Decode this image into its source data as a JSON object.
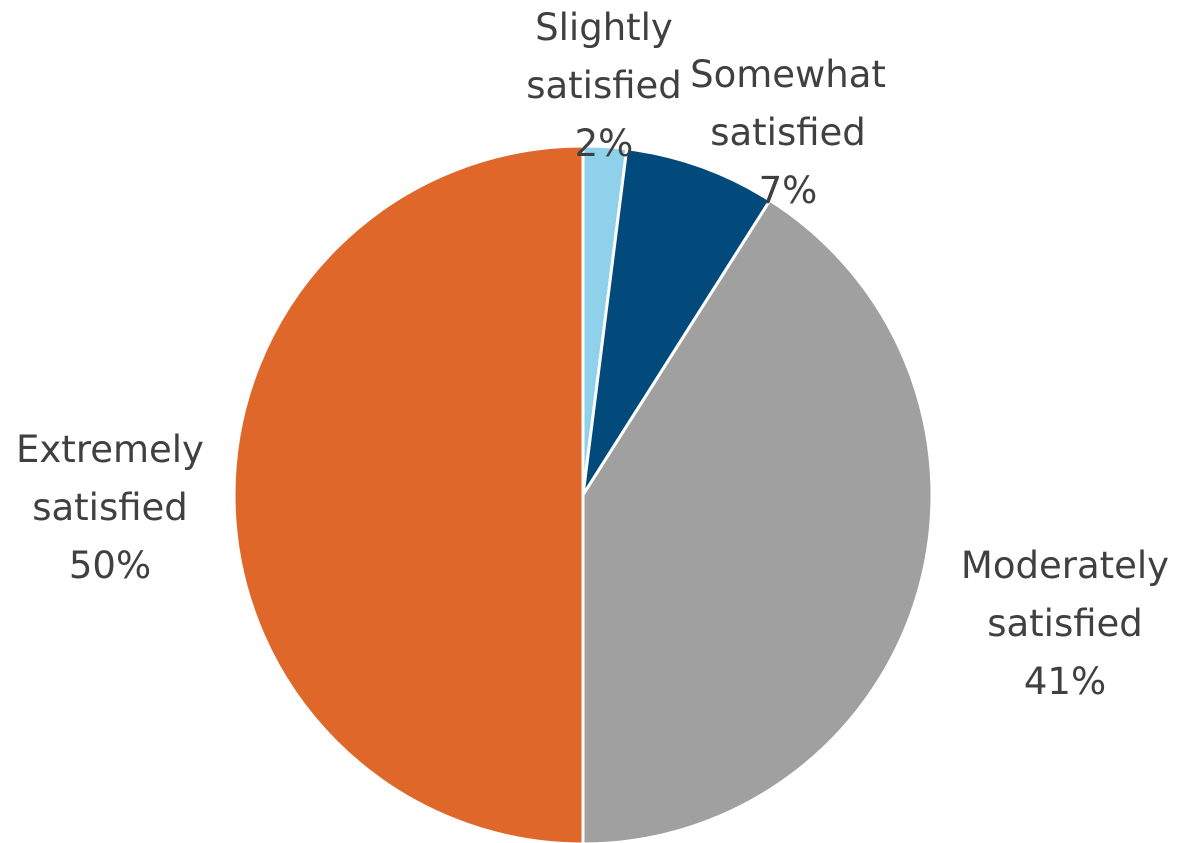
{
  "chart_data": {
    "type": "pie",
    "title": "",
    "slices": [
      {
        "label_lines": [
          "Slightly",
          "satisfied"
        ],
        "value": 2,
        "value_label": "2%",
        "color": "#8fd0ea"
      },
      {
        "label_lines": [
          "Somewhat",
          "satisfied"
        ],
        "value": 7,
        "value_label": "7%",
        "color": "#02497c"
      },
      {
        "label_lines": [
          "Moderately",
          "satisfied"
        ],
        "value": 41,
        "value_label": "41%",
        "color": "#a0a0a0"
      },
      {
        "label_lines": [
          "Extremely",
          "satisfied"
        ],
        "value": 50,
        "value_label": "50%",
        "color": "#e0672a"
      }
    ],
    "start": "12 o'clock",
    "direction": "clockwise",
    "legend": "none",
    "labels": "outside with category name and percentage"
  }
}
